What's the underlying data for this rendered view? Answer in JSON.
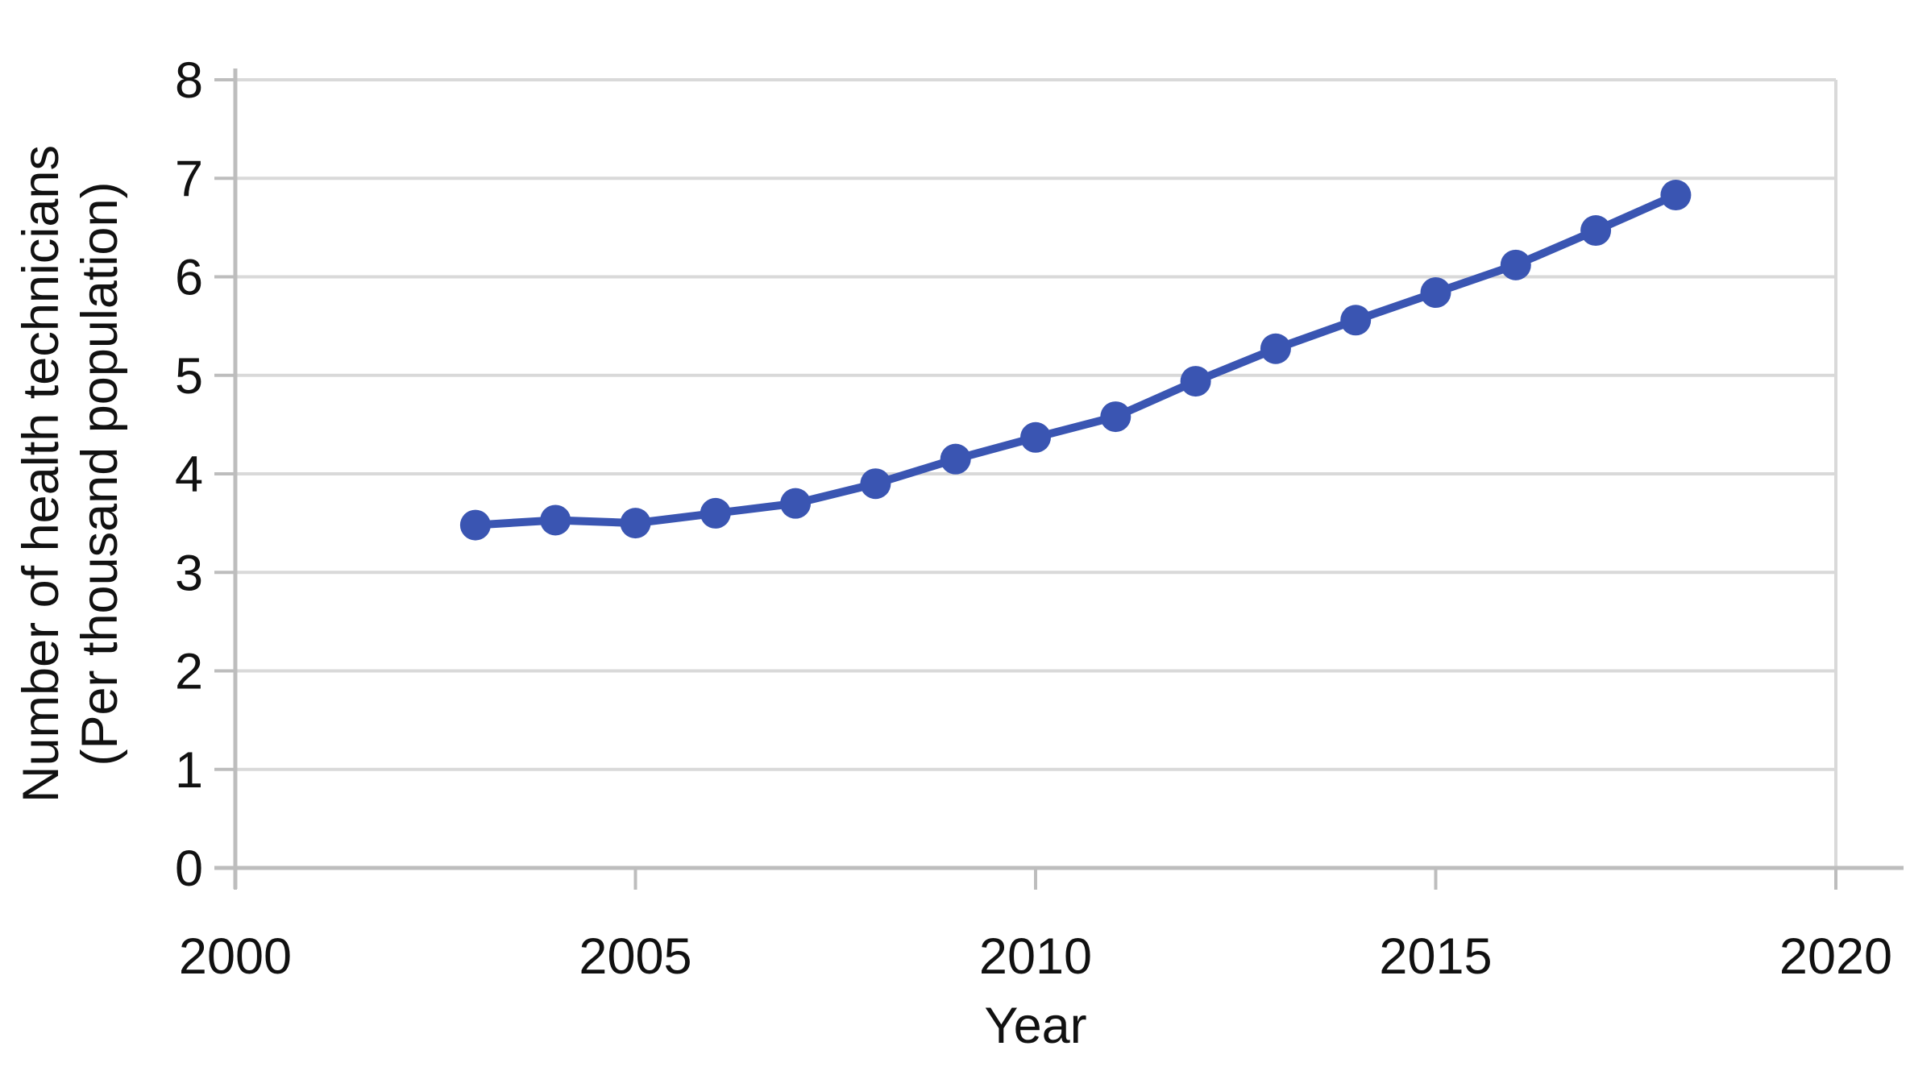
{
  "chart_data": {
    "type": "line",
    "title": "",
    "xlabel": "Year",
    "ylabel_line1": "Number of health technicians",
    "ylabel_line2": "(Per thousand population)",
    "x": [
      2003,
      2004,
      2005,
      2006,
      2007,
      2008,
      2009,
      2010,
      2011,
      2012,
      2013,
      2014,
      2015,
      2016,
      2017,
      2018
    ],
    "values": [
      3.48,
      3.53,
      3.5,
      3.6,
      3.7,
      3.9,
      4.15,
      4.37,
      4.58,
      4.94,
      5.27,
      5.56,
      5.84,
      6.12,
      6.47,
      6.83
    ],
    "xlim": [
      2000,
      2020
    ],
    "ylim": [
      0,
      8
    ],
    "x_ticks": [
      2000,
      2005,
      2010,
      2015,
      2020
    ],
    "y_ticks": [
      0,
      1,
      2,
      3,
      4,
      5,
      6,
      7,
      8
    ],
    "grid": true,
    "legend": false,
    "marker": "circle",
    "colors": {
      "line": "#3A55B2",
      "marker": "#3A55B2",
      "gridline": "#D9D9D9",
      "axis": "#BDBDBD",
      "text": "#111111"
    }
  }
}
